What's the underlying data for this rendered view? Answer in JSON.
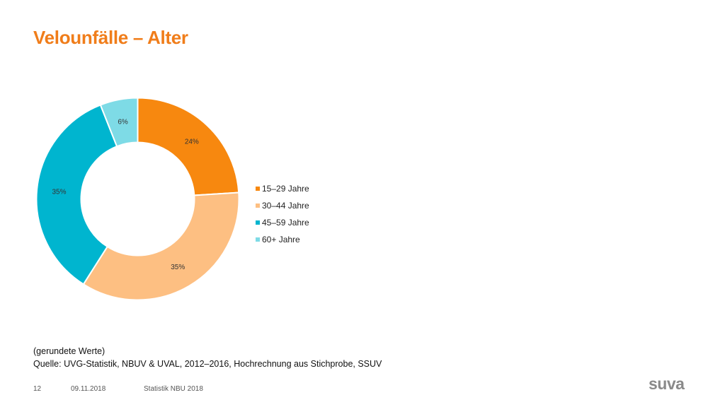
{
  "title": "Velounfälle – Alter",
  "chart_data": {
    "type": "pie",
    "donut": true,
    "categories": [
      "15–29 Jahre",
      "30–44 Jahre",
      "45–59 Jahre",
      "60+ Jahre"
    ],
    "values": [
      24,
      35,
      35,
      6
    ],
    "data_labels": [
      "24%",
      "35%",
      "35%",
      "6%"
    ],
    "colors": [
      "#f7880f",
      "#fdbf82",
      "#00b5cf",
      "#7edbe6"
    ],
    "legend_position": "right"
  },
  "note": {
    "line1": "(gerundete Werte)",
    "line2": "Quelle: UVG-Statistik, NBUV & UVAL, 2012–2016, Hochrechnung aus Stichprobe, SSUV"
  },
  "footer": {
    "page": "12",
    "date": "09.11.2018",
    "label": "Statistik NBU 2018"
  },
  "logo": "suva"
}
